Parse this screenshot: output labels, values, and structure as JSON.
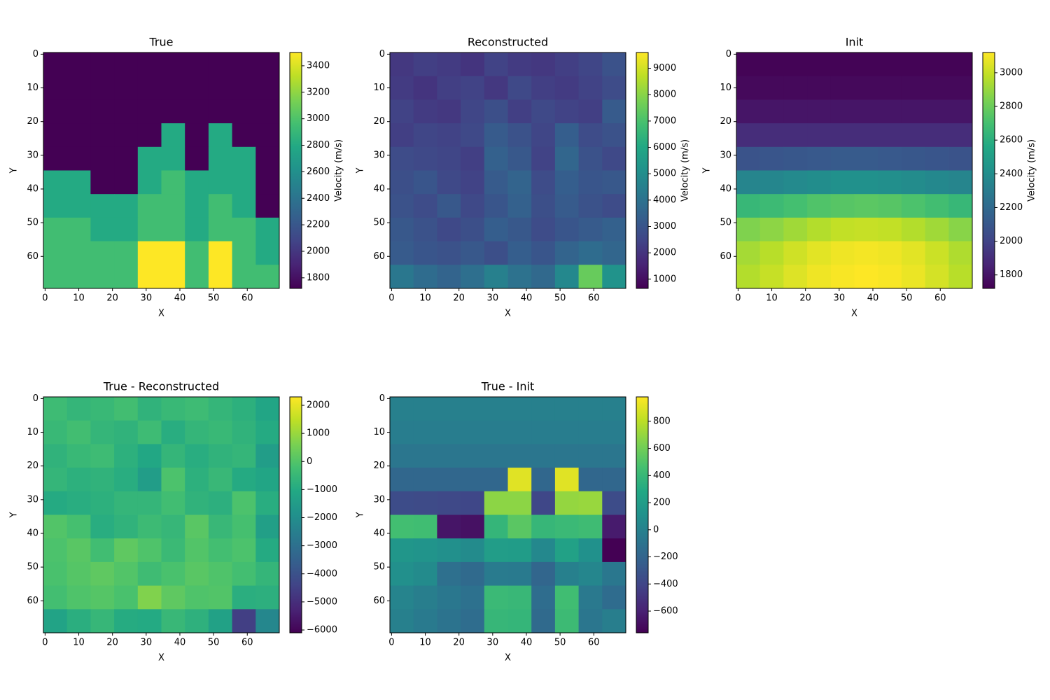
{
  "chart_data": [
    {
      "type": "heatmap",
      "title": "True",
      "xlabel": "X",
      "ylabel": "Y",
      "colorbar_label": "Velocity (m/s)",
      "xlim": [
        -0.5,
        69.5
      ],
      "ylim": [
        69.5,
        -0.5
      ],
      "xticks": [
        0,
        10,
        20,
        30,
        40,
        50,
        60
      ],
      "yticks": [
        0,
        10,
        20,
        30,
        40,
        50,
        60
      ],
      "clim": [
        1720,
        3500
      ],
      "cticks": [
        1800,
        2000,
        2200,
        2400,
        2600,
        2800,
        3000,
        3200,
        3400
      ],
      "z": [
        [
          1720,
          1720,
          1720,
          1720,
          1720,
          1720,
          1720,
          1720,
          1720,
          1720
        ],
        [
          1720,
          1720,
          1720,
          1720,
          1720,
          1720,
          1720,
          1720,
          1720,
          1720
        ],
        [
          1720,
          1720,
          1720,
          1720,
          1720,
          1720,
          1720,
          1720,
          1720,
          1720
        ],
        [
          1720,
          1720,
          1720,
          1720,
          1720,
          2800,
          1720,
          2800,
          1720,
          1720
        ],
        [
          1720,
          1720,
          1720,
          1720,
          2800,
          2800,
          1720,
          2800,
          2800,
          1720
        ],
        [
          2800,
          2800,
          1720,
          1720,
          2800,
          2950,
          2800,
          2800,
          2800,
          1720
        ],
        [
          2800,
          2800,
          2800,
          2800,
          2950,
          2950,
          2800,
          2950,
          2800,
          1720
        ],
        [
          2950,
          2950,
          2800,
          2800,
          2950,
          2950,
          2800,
          2950,
          2950,
          2800
        ],
        [
          2950,
          2950,
          2950,
          2950,
          3500,
          3500,
          2950,
          3500,
          2950,
          2800
        ],
        [
          2950,
          2950,
          2950,
          2950,
          3500,
          3500,
          2950,
          3500,
          2950,
          2950
        ]
      ]
    },
    {
      "type": "heatmap",
      "title": "Reconstructed",
      "xlabel": "X",
      "ylabel": "Y",
      "colorbar_label": "Velocity (m/s)",
      "xlim": [
        -0.5,
        69.5
      ],
      "ylim": [
        69.5,
        -0.5
      ],
      "xticks": [
        0,
        10,
        20,
        30,
        40,
        50,
        60
      ],
      "yticks": [
        0,
        10,
        20,
        30,
        40,
        50,
        60
      ],
      "clim": [
        650,
        9600
      ],
      "cticks": [
        1000,
        2000,
        3000,
        4000,
        5000,
        6000,
        7000,
        8000,
        9000
      ],
      "z": [
        [
          2100,
          2300,
          2200,
          2000,
          2400,
          2200,
          2100,
          2300,
          2500,
          2900
        ],
        [
          2200,
          2000,
          2300,
          2400,
          2100,
          2600,
          2300,
          2200,
          2400,
          2700
        ],
        [
          2400,
          2200,
          2100,
          2500,
          2800,
          2300,
          2600,
          2400,
          2300,
          3200
        ],
        [
          2300,
          2500,
          2400,
          2600,
          3200,
          2900,
          2500,
          3300,
          2700,
          2900
        ],
        [
          2700,
          2600,
          2500,
          2300,
          3400,
          3100,
          2400,
          3600,
          2900,
          2600
        ],
        [
          2800,
          3000,
          2600,
          2400,
          3200,
          3500,
          2700,
          3300,
          3000,
          3100
        ],
        [
          2900,
          2700,
          3100,
          2600,
          3000,
          3400,
          2800,
          3200,
          2900,
          2700
        ],
        [
          3100,
          2900,
          2600,
          2800,
          3300,
          3100,
          2700,
          3000,
          3200,
          3400
        ],
        [
          3200,
          3000,
          2900,
          3100,
          2800,
          3300,
          3000,
          3500,
          3800,
          3600
        ],
        [
          4200,
          3800,
          3500,
          3900,
          4500,
          4000,
          3700,
          4800,
          7500,
          5200
        ]
      ]
    },
    {
      "type": "heatmap",
      "title": "Init",
      "xlabel": "X",
      "ylabel": "Y",
      "colorbar_label": "Velocity (m/s)",
      "xlim": [
        -0.5,
        69.5
      ],
      "ylim": [
        69.5,
        -0.5
      ],
      "xticks": [
        0,
        10,
        20,
        30,
        40,
        50,
        60
      ],
      "yticks": [
        0,
        10,
        20,
        30,
        40,
        50,
        60
      ],
      "clim": [
        1720,
        3120
      ],
      "cticks": [
        1800,
        2000,
        2200,
        2400,
        2600,
        2800,
        3000
      ],
      "z": [
        [
          1730,
          1730,
          1730,
          1730,
          1730,
          1730,
          1730,
          1730,
          1730,
          1730
        ],
        [
          1750,
          1750,
          1750,
          1750,
          1750,
          1750,
          1750,
          1750,
          1750,
          1750
        ],
        [
          1800,
          1800,
          1800,
          1800,
          1800,
          1800,
          1800,
          1800,
          1800,
          1800
        ],
        [
          1900,
          1900,
          1900,
          1900,
          1900,
          1900,
          1900,
          1900,
          1900,
          1900
        ],
        [
          2080,
          2090,
          2100,
          2110,
          2120,
          2120,
          2110,
          2100,
          2090,
          2080
        ],
        [
          2350,
          2360,
          2380,
          2400,
          2420,
          2420,
          2410,
          2390,
          2370,
          2350
        ],
        [
          2650,
          2670,
          2700,
          2730,
          2750,
          2760,
          2750,
          2720,
          2690,
          2650
        ],
        [
          2850,
          2880,
          2920,
          2960,
          2990,
          3000,
          2990,
          2960,
          2920,
          2870
        ],
        [
          2930,
          2970,
          3020,
          3060,
          3090,
          3100,
          3090,
          3060,
          3010,
          2950
        ],
        [
          2960,
          3000,
          3050,
          3090,
          3110,
          3120,
          3110,
          3080,
          3030,
          2970
        ]
      ]
    },
    {
      "type": "heatmap",
      "title": "True - Reconstructed",
      "xlabel": "X",
      "ylabel": "Y",
      "xlim": [
        -0.5,
        69.5
      ],
      "ylim": [
        69.5,
        -0.5
      ],
      "xticks": [
        0,
        10,
        20,
        30,
        40,
        50,
        60
      ],
      "yticks": [
        0,
        10,
        20,
        30,
        40,
        50,
        60
      ],
      "clim": [
        -6100,
        2300
      ],
      "cticks": [
        {
          "value": -6000,
          "label": "−6000"
        },
        {
          "value": -5000,
          "label": "−5000"
        },
        {
          "value": -4000,
          "label": "−4000"
        },
        {
          "value": -3000,
          "label": "−3000"
        },
        {
          "value": -2000,
          "label": "−2000"
        },
        {
          "value": -1000,
          "label": "−1000"
        },
        0,
        1000,
        2000
      ],
      "z": [
        [
          -380,
          -580,
          -480,
          -280,
          -680,
          -480,
          -380,
          -580,
          -780,
          -1180
        ],
        [
          -480,
          -280,
          -580,
          -680,
          -380,
          -880,
          -580,
          -480,
          -680,
          -980
        ],
        [
          -680,
          -480,
          -380,
          -780,
          -1080,
          -580,
          -880,
          -680,
          -580,
          -1480
        ],
        [
          -580,
          -780,
          -680,
          -880,
          -1480,
          -100,
          -780,
          -500,
          -980,
          -1180
        ],
        [
          -980,
          -880,
          -780,
          -580,
          -600,
          -300,
          -680,
          -800,
          -100,
          -880
        ],
        [
          0,
          -200,
          -880,
          -680,
          -400,
          -550,
          100,
          -500,
          -200,
          -1380
        ],
        [
          -100,
          100,
          -300,
          200,
          -50,
          -450,
          0,
          -250,
          -100,
          -980
        ],
        [
          -150,
          50,
          200,
          0,
          -350,
          -150,
          100,
          -50,
          -250,
          -600
        ],
        [
          -250,
          -50,
          50,
          -150,
          700,
          200,
          -50,
          0,
          -850,
          -800
        ],
        [
          -1250,
          -850,
          -550,
          -950,
          -1000,
          -500,
          -750,
          -1300,
          -4550,
          -2250
        ]
      ]
    },
    {
      "type": "heatmap",
      "title": "True - Init",
      "xlabel": "X",
      "ylabel": "Y",
      "xlim": [
        -0.5,
        69.5
      ],
      "ylim": [
        69.5,
        -0.5
      ],
      "xticks": [
        0,
        10,
        20,
        30,
        40,
        50,
        60
      ],
      "yticks": [
        0,
        10,
        20,
        30,
        40,
        50,
        60
      ],
      "clim": [
        -760,
        980
      ],
      "cticks": [
        {
          "value": -600,
          "label": "−600"
        },
        {
          "value": -400,
          "label": "−400"
        },
        {
          "value": -200,
          "label": "−200"
        },
        0,
        200,
        400,
        600,
        800
      ],
      "z": [
        [
          -10,
          -10,
          -10,
          -10,
          -10,
          -10,
          -10,
          -10,
          -10,
          -10
        ],
        [
          -30,
          -30,
          -30,
          -30,
          -30,
          -30,
          -30,
          -30,
          -30,
          -30
        ],
        [
          -80,
          -80,
          -80,
          -80,
          -80,
          -80,
          -80,
          -80,
          -80,
          -80
        ],
        [
          -180,
          -180,
          -180,
          -180,
          -180,
          900,
          -180,
          900,
          -180,
          -180
        ],
        [
          -360,
          -370,
          -380,
          -390,
          680,
          680,
          -390,
          700,
          710,
          -360
        ],
        [
          450,
          440,
          -660,
          -680,
          380,
          530,
          390,
          410,
          430,
          -630
        ],
        [
          150,
          130,
          100,
          70,
          200,
          190,
          50,
          230,
          110,
          -760
        ],
        [
          100,
          70,
          -120,
          -160,
          -40,
          -50,
          -190,
          -10,
          30,
          -70
        ],
        [
          20,
          -20,
          -70,
          -110,
          410,
          400,
          -140,
          440,
          -60,
          -150
        ],
        [
          -10,
          -50,
          -100,
          -140,
          390,
          380,
          -160,
          420,
          -80,
          -20
        ]
      ]
    }
  ]
}
